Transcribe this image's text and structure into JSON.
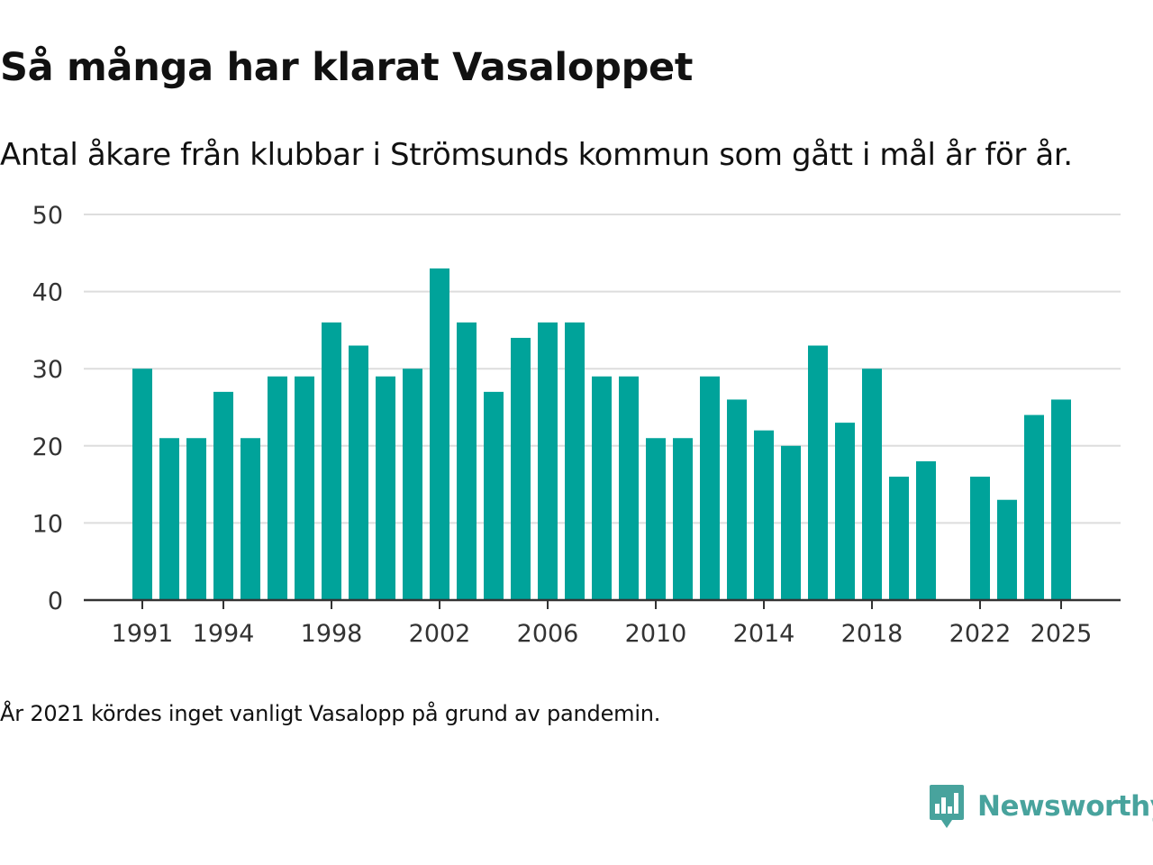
{
  "colors": {
    "bar": "#00a39a",
    "grid": "#dddddd",
    "axis": "#333333",
    "brand": "#48a39d"
  },
  "brand": {
    "name": "Newsworthy",
    "icon": "newsworthy-logo-icon"
  },
  "chart_data": {
    "type": "bar",
    "title": "Så många har klarat Vasaloppet",
    "subtitle": "Antal åkare från klubbar i Strömsunds kommun som gått i mål år för år.",
    "xlabel": "",
    "ylabel": "",
    "ylim": [
      0,
      50
    ],
    "yticks": [
      0,
      10,
      20,
      30,
      40,
      50
    ],
    "xticks": [
      1991,
      1994,
      1998,
      2002,
      2006,
      2010,
      2014,
      2018,
      2022,
      2025
    ],
    "categories": [
      1991,
      1992,
      1993,
      1994,
      1995,
      1996,
      1997,
      1998,
      1999,
      2000,
      2001,
      2002,
      2003,
      2004,
      2005,
      2006,
      2007,
      2008,
      2009,
      2010,
      2011,
      2012,
      2013,
      2014,
      2015,
      2016,
      2017,
      2018,
      2019,
      2020,
      2021,
      2022,
      2023,
      2024,
      2025
    ],
    "values": [
      30,
      21,
      21,
      27,
      21,
      29,
      29,
      36,
      33,
      29,
      30,
      43,
      36,
      27,
      34,
      36,
      36,
      29,
      29,
      21,
      21,
      29,
      26,
      22,
      20,
      33,
      23,
      30,
      16,
      18,
      null,
      16,
      13,
      24,
      26
    ],
    "grid": true,
    "note": "År 2021 kördes inget vanligt Vasalopp på grund av pandemin."
  }
}
